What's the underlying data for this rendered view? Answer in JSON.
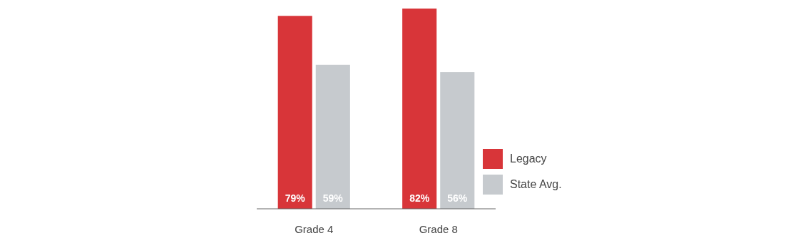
{
  "chart_data": {
    "type": "bar",
    "categories": [
      "Grade 4",
      "Grade 8"
    ],
    "series": [
      {
        "name": "Legacy",
        "color": "#d83539",
        "values": [
          79,
          82
        ],
        "value_labels": [
          "79%",
          "82%"
        ]
      },
      {
        "name": "State Avg.",
        "color": "#c6cace",
        "values": [
          59,
          56
        ],
        "value_labels": [
          "59%",
          "56%"
        ]
      }
    ],
    "legend": "right"
  }
}
